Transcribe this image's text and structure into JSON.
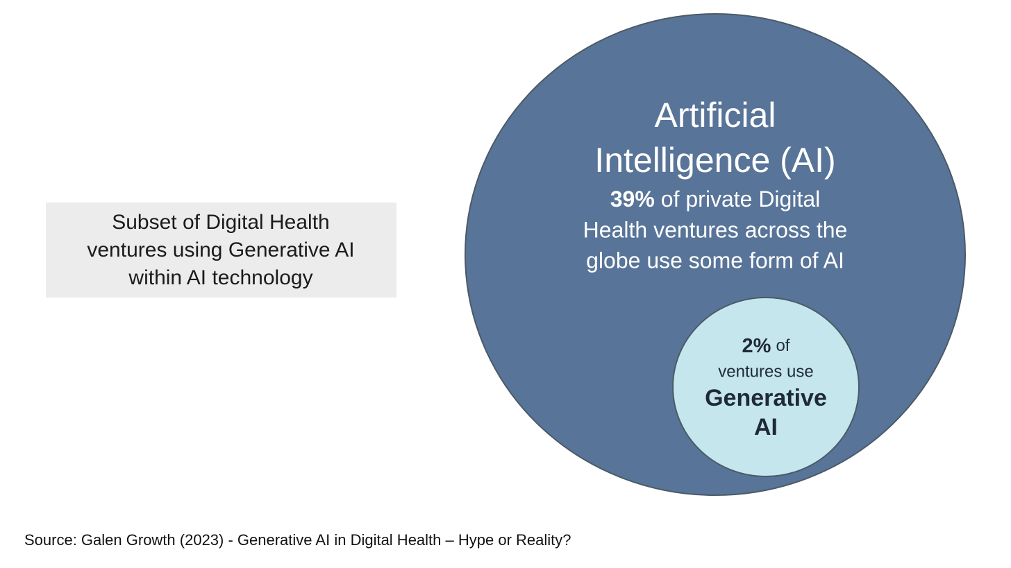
{
  "note_box": {
    "lines": [
      "Subset of Digital Health",
      "ventures using Generative AI",
      "within AI technology"
    ]
  },
  "outer_circle": {
    "title_lines": [
      "Artificial",
      "Intelligence (AI)"
    ],
    "stat": "39%",
    "stat_text": "of private Digital",
    "description_lines": [
      "Health ventures across the",
      "globe use some form of AI"
    ]
  },
  "inner_circle": {
    "stat": "2%",
    "stat_text": "of",
    "line": "ventures use",
    "emphasis_lines": [
      "Generative",
      "AI"
    ]
  },
  "source": "Source: Galen Growth (2023) - Generative AI in Digital Health – Hype or Reality?"
}
